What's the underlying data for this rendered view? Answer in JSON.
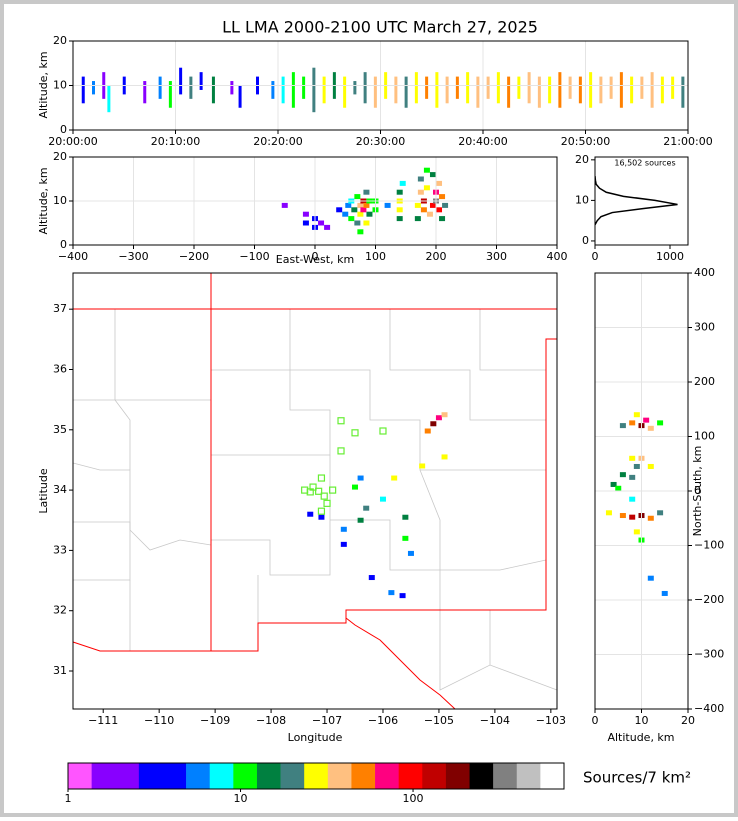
{
  "chart_data": [
    {
      "type": "timeheight",
      "title": "LL LMA 2000-2100 UTC March 27, 2025",
      "ylabel": "Altitude, km",
      "grid": true,
      "xlim": [
        0,
        60
      ],
      "xticks": [
        {
          "value": 0,
          "label": "20:00:00"
        },
        {
          "value": 10,
          "label": "20:10:00"
        },
        {
          "value": 20,
          "label": "20:20:00"
        },
        {
          "value": 30,
          "label": "20:30:00"
        },
        {
          "value": 40,
          "label": "20:40:00"
        },
        {
          "value": 50,
          "label": "20:50:00"
        },
        {
          "value": 60,
          "label": "21:00:00"
        }
      ],
      "ylim": [
        0,
        20
      ],
      "yticks": [
        0,
        10,
        20
      ],
      "streaks": [
        [
          1,
          6,
          12,
          3
        ],
        [
          2,
          8,
          11,
          5
        ],
        [
          3,
          7,
          13,
          2
        ],
        [
          3.5,
          4,
          10,
          8
        ],
        [
          5,
          8,
          12,
          3
        ],
        [
          7,
          6,
          11,
          2
        ],
        [
          8.5,
          7,
          12,
          6
        ],
        [
          9.5,
          5,
          11,
          10
        ],
        [
          10.5,
          8,
          14,
          4
        ],
        [
          11.5,
          7,
          12,
          20
        ],
        [
          12.5,
          9,
          13,
          3
        ],
        [
          13.7,
          6,
          12,
          15
        ],
        [
          15.5,
          8,
          11,
          2
        ],
        [
          16.3,
          5,
          10,
          4
        ],
        [
          18,
          8,
          12,
          3
        ],
        [
          19.5,
          7,
          11,
          6
        ],
        [
          20.5,
          6,
          12,
          8
        ],
        [
          21.5,
          5,
          13,
          10
        ],
        [
          22.5,
          7,
          12,
          12
        ],
        [
          23.5,
          4,
          14,
          20
        ],
        [
          24.5,
          6,
          12,
          25
        ],
        [
          25.5,
          7,
          13,
          15
        ],
        [
          26.5,
          5,
          12,
          30
        ],
        [
          27.5,
          8,
          11,
          18
        ],
        [
          28.5,
          6,
          13,
          22
        ],
        [
          29.5,
          5,
          12,
          40
        ],
        [
          30.5,
          7,
          13,
          25
        ],
        [
          31.5,
          6,
          12,
          35
        ],
        [
          32.5,
          5,
          12,
          20
        ],
        [
          33.5,
          6,
          13,
          30
        ],
        [
          34.5,
          7,
          12,
          45
        ],
        [
          35.5,
          5,
          13,
          28
        ],
        [
          36.5,
          6,
          12,
          35
        ],
        [
          37.5,
          7,
          12,
          50
        ],
        [
          38.5,
          6,
          13,
          30
        ],
        [
          39.5,
          5,
          12,
          40
        ],
        [
          40.5,
          7,
          12,
          35
        ],
        [
          41.5,
          6,
          13,
          25
        ],
        [
          42.5,
          5,
          12,
          45
        ],
        [
          43.5,
          7,
          12,
          30
        ],
        [
          44.5,
          6,
          13,
          40
        ],
        [
          45.5,
          5,
          12,
          35
        ],
        [
          46.5,
          6,
          12,
          30
        ],
        [
          47.5,
          5,
          13,
          45
        ],
        [
          48.5,
          7,
          12,
          38
        ],
        [
          49.5,
          6,
          12,
          50
        ],
        [
          50.5,
          5,
          13,
          30
        ],
        [
          51.5,
          6,
          12,
          40
        ],
        [
          52.5,
          7,
          12,
          35
        ],
        [
          53.5,
          5,
          13,
          45
        ],
        [
          54.5,
          6,
          12,
          30
        ],
        [
          55.5,
          7,
          12,
          40
        ],
        [
          56.5,
          5,
          13,
          35
        ],
        [
          57.5,
          6,
          12,
          25
        ],
        [
          58.5,
          7,
          12,
          30
        ],
        [
          59.5,
          5,
          12,
          20
        ]
      ]
    },
    {
      "type": "density",
      "xlabel": "East-West, km",
      "ylabel": "Altitude, km",
      "grid": true,
      "xlim": [
        -400,
        400
      ],
      "xticks": [
        {
          "value": -400,
          "label": "−400"
        },
        {
          "value": -300,
          "label": "−300"
        },
        {
          "value": -200,
          "label": "−200"
        },
        {
          "value": -100,
          "label": "−100"
        },
        0,
        100,
        200,
        300,
        400
      ],
      "ylim": [
        0,
        20
      ],
      "yticks": [
        0,
        10,
        20
      ],
      "points": [
        [
          -50,
          9,
          2
        ],
        [
          -15,
          5,
          3
        ],
        [
          -15,
          7,
          2
        ],
        [
          0,
          4,
          4
        ],
        [
          0,
          6,
          3
        ],
        [
          10,
          5,
          2
        ],
        [
          20,
          4,
          2
        ],
        [
          40,
          8,
          3
        ],
        [
          50,
          7,
          5
        ],
        [
          55,
          9,
          6
        ],
        [
          60,
          6,
          10
        ],
        [
          60,
          10,
          8
        ],
        [
          65,
          8,
          15
        ],
        [
          70,
          5,
          20
        ],
        [
          70,
          11,
          12
        ],
        [
          75,
          3,
          10
        ],
        [
          75,
          7,
          30
        ],
        [
          75,
          9,
          40
        ],
        [
          80,
          8,
          80
        ],
        [
          80,
          10,
          150
        ],
        [
          85,
          9,
          60
        ],
        [
          85,
          12,
          20
        ],
        [
          85,
          5,
          25
        ],
        [
          90,
          7,
          15
        ],
        [
          90,
          10,
          12
        ],
        [
          100,
          8,
          10
        ],
        [
          100,
          10,
          12
        ],
        [
          120,
          9,
          5
        ],
        [
          140,
          6,
          15
        ],
        [
          140,
          8,
          25
        ],
        [
          140,
          10,
          30
        ],
        [
          140,
          12,
          15
        ],
        [
          145,
          14,
          8
        ],
        [
          170,
          6,
          15
        ],
        [
          170,
          9,
          30
        ],
        [
          175,
          12,
          40
        ],
        [
          175,
          15,
          20
        ],
        [
          180,
          8,
          50
        ],
        [
          180,
          10,
          120
        ],
        [
          185,
          13,
          30
        ],
        [
          185,
          17,
          10
        ],
        [
          190,
          7,
          40
        ],
        [
          195,
          9,
          100
        ],
        [
          200,
          10,
          300
        ],
        [
          200,
          12,
          80
        ],
        [
          205,
          8,
          90
        ],
        [
          205,
          14,
          40
        ],
        [
          210,
          11,
          60
        ],
        [
          215,
          9,
          20
        ],
        [
          195,
          16,
          15
        ],
        [
          210,
          6,
          15
        ]
      ]
    },
    {
      "type": "line",
      "annotation": "16,502 sources",
      "xlim": [
        0,
        1240
      ],
      "xticks": [
        0,
        1000
      ],
      "ylim": [
        -1,
        20.7
      ],
      "yticks": [
        0,
        10,
        20
      ],
      "series": [
        {
          "color": "#000000",
          "x": [
            0,
            30,
            80,
            230,
            650,
            1100,
            800,
            380,
            150,
            60,
            15,
            5,
            0
          ],
          "y": [
            4,
            5,
            6,
            7,
            8,
            9,
            10,
            11,
            12,
            13,
            14,
            15,
            16
          ]
        }
      ]
    },
    {
      "type": "map",
      "xlabel": "Longitude",
      "ylabel": "Latitude",
      "xlim": [
        -111.54,
        -102.89
      ],
      "xticks": [
        {
          "value": -111,
          "label": "−111"
        },
        {
          "value": -110,
          "label": "−110"
        },
        {
          "value": -109,
          "label": "−109"
        },
        {
          "value": -108,
          "label": "−108"
        },
        {
          "value": -107,
          "label": "−107"
        },
        {
          "value": -106,
          "label": "−106"
        },
        {
          "value": -105,
          "label": "−105"
        },
        {
          "value": -104,
          "label": "−104"
        },
        {
          "value": -103,
          "label": "−103"
        }
      ],
      "ylim": [
        30.37,
        37.6
      ],
      "yticks": [
        31,
        32,
        33,
        34,
        35,
        36,
        37
      ],
      "points": [
        [
          -105.1,
          35.1,
          200
        ],
        [
          -105.0,
          35.2,
          80
        ],
        [
          -104.9,
          35.25,
          40
        ],
        [
          -105.2,
          34.98,
          60
        ],
        [
          -104.9,
          34.55,
          30
        ],
        [
          -105.3,
          34.4,
          25
        ],
        [
          -105.8,
          34.2,
          30
        ],
        [
          -105.6,
          33.55,
          15
        ],
        [
          -105.6,
          33.2,
          12
        ],
        [
          -106.0,
          33.85,
          8
        ],
        [
          -106.3,
          33.7,
          20
        ],
        [
          -106.4,
          33.5,
          15
        ],
        [
          -106.5,
          34.05,
          10
        ],
        [
          -106.4,
          34.2,
          6
        ],
        [
          -106.7,
          33.35,
          5
        ],
        [
          -106.7,
          33.1,
          4
        ],
        [
          -107.3,
          33.6,
          3
        ],
        [
          -107.1,
          33.55,
          4
        ],
        [
          -105.5,
          32.95,
          5
        ],
        [
          -105.85,
          32.3,
          6
        ],
        [
          -105.65,
          32.25,
          4
        ],
        [
          -106.2,
          32.55,
          3
        ]
      ],
      "stations": {
        "color": "#66ee33",
        "points": [
          [
            -106.75,
            35.15
          ],
          [
            -106.5,
            34.95
          ],
          [
            -106.0,
            34.98
          ],
          [
            -106.75,
            34.65
          ],
          [
            -107.1,
            34.2
          ],
          [
            -107.25,
            34.05
          ],
          [
            -107.4,
            34.0
          ],
          [
            -107.3,
            33.97
          ],
          [
            -107.15,
            33.98
          ],
          [
            -106.9,
            34.0
          ],
          [
            -107.05,
            33.9
          ],
          [
            -107.0,
            33.78
          ],
          [
            -107.1,
            33.65
          ]
        ]
      }
    },
    {
      "type": "density",
      "xlabel": "Altitude, km",
      "ylabel": "North-South, km",
      "grid": true,
      "xlim": [
        0,
        20
      ],
      "xticks": [
        0,
        10,
        20
      ],
      "ylim": [
        -400,
        400
      ],
      "yticks": [
        {
          "value": -400,
          "label": "−400"
        },
        {
          "value": -300,
          "label": "−300"
        },
        {
          "value": -200,
          "label": "−200"
        },
        {
          "value": -100,
          "label": "−100"
        },
        0,
        100,
        200,
        300,
        400
      ],
      "points": [
        [
          6,
          120,
          20
        ],
        [
          8,
          125,
          60
        ],
        [
          10,
          120,
          200
        ],
        [
          11,
          130,
          80
        ],
        [
          12,
          115,
          40
        ],
        [
          14,
          125,
          10
        ],
        [
          9,
          140,
          30
        ],
        [
          8,
          60,
          30
        ],
        [
          10,
          60,
          40
        ],
        [
          12,
          45,
          30
        ],
        [
          9,
          45,
          20
        ],
        [
          6,
          30,
          15
        ],
        [
          8,
          25,
          20
        ],
        [
          4,
          12,
          15
        ],
        [
          5,
          5,
          10
        ],
        [
          8,
          -15,
          8
        ],
        [
          3,
          -40,
          30
        ],
        [
          6,
          -45,
          60
        ],
        [
          8,
          -48,
          120
        ],
        [
          10,
          -45,
          200
        ],
        [
          12,
          -50,
          60
        ],
        [
          14,
          -40,
          20
        ],
        [
          9,
          -75,
          25
        ],
        [
          10,
          -90,
          10
        ],
        [
          12,
          -160,
          5
        ],
        [
          15,
          -188,
          6
        ]
      ]
    },
    {
      "type": "colorbar",
      "label": "Sources/7 km²",
      "log": true,
      "clim": [
        1,
        750
      ],
      "ticks": [
        1,
        10,
        100
      ],
      "colors": [
        "#ff55ff",
        "#8800ff",
        "#8800ff",
        "#0000ff",
        "#0000ff",
        "#0080ff",
        "#00ffff",
        "#00ff00",
        "#008040",
        "#408080",
        "#ffff00",
        "#ffc080",
        "#ff8000",
        "#ff0080",
        "#ff0000",
        "#c00000",
        "#800000",
        "#000000",
        "#808080",
        "#c0c0c0",
        "#ffffff"
      ]
    }
  ]
}
